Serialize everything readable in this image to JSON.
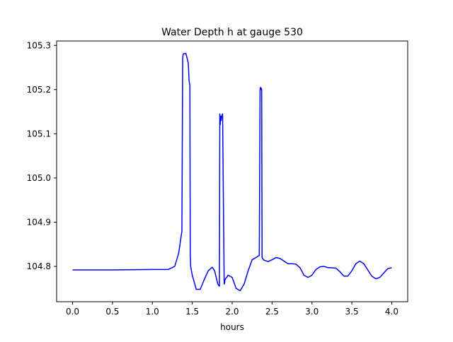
{
  "chart_data": {
    "type": "line",
    "title": "Water Depth h at gauge 530",
    "xlabel": "hours",
    "ylabel": "",
    "xlim": [
      -0.2,
      4.2
    ],
    "ylim": [
      104.72,
      105.31
    ],
    "xticks": [
      0.0,
      0.5,
      1.0,
      1.5,
      2.0,
      2.5,
      3.0,
      3.5,
      4.0
    ],
    "xtick_labels": [
      "0.0",
      "0.5",
      "1.0",
      "1.5",
      "2.0",
      "2.5",
      "3.0",
      "3.5",
      "4.0"
    ],
    "yticks": [
      104.8,
      104.9,
      105.0,
      105.1,
      105.2,
      105.3
    ],
    "ytick_labels": [
      "104.8",
      "104.9",
      "105.0",
      "105.1",
      "105.2",
      "105.3"
    ],
    "grid": false,
    "series": [
      {
        "color": "#0000ff",
        "x": [
          0.0,
          0.5,
          1.0,
          1.2,
          1.28,
          1.33,
          1.37,
          1.38,
          1.385,
          1.39,
          1.42,
          1.45,
          1.46,
          1.47,
          1.475,
          1.48,
          1.5,
          1.55,
          1.6,
          1.65,
          1.7,
          1.75,
          1.78,
          1.82,
          1.84,
          1.845,
          1.85,
          1.855,
          1.86,
          1.865,
          1.87,
          1.88,
          1.9,
          1.905,
          1.91,
          1.95,
          2.0,
          2.05,
          2.1,
          2.15,
          2.2,
          2.25,
          2.3,
          2.34,
          2.35,
          2.355,
          2.36,
          2.365,
          2.37,
          2.375,
          2.38,
          2.4,
          2.45,
          2.5,
          2.55,
          2.6,
          2.65,
          2.7,
          2.75,
          2.8,
          2.85,
          2.9,
          2.95,
          3.0,
          3.05,
          3.1,
          3.15,
          3.2,
          3.25,
          3.3,
          3.35,
          3.4,
          3.45,
          3.5,
          3.55,
          3.6,
          3.65,
          3.7,
          3.75,
          3.8,
          3.85,
          3.9,
          3.95,
          4.0
        ],
        "y": [
          104.792,
          104.792,
          104.793,
          104.793,
          104.8,
          104.83,
          104.88,
          105.27,
          105.28,
          105.281,
          105.282,
          105.26,
          105.22,
          105.21,
          104.825,
          104.8,
          104.78,
          104.748,
          104.748,
          104.77,
          104.79,
          104.798,
          104.79,
          104.76,
          104.755,
          105.145,
          105.12,
          105.14,
          105.13,
          105.135,
          105.14,
          105.145,
          104.76,
          104.762,
          104.77,
          104.78,
          104.775,
          104.75,
          104.745,
          104.76,
          104.79,
          104.815,
          104.82,
          104.825,
          105.2,
          105.205,
          105.2,
          105.203,
          105.2,
          104.82,
          104.818,
          104.814,
          104.811,
          104.815,
          104.82,
          104.818,
          104.812,
          104.806,
          104.806,
          104.805,
          104.797,
          104.78,
          104.775,
          104.78,
          104.793,
          104.799,
          104.8,
          104.797,
          104.797,
          104.796,
          104.788,
          104.778,
          104.778,
          104.79,
          104.806,
          104.812,
          104.806,
          104.792,
          104.778,
          104.772,
          104.775,
          104.785,
          104.795,
          104.797
        ]
      }
    ]
  }
}
